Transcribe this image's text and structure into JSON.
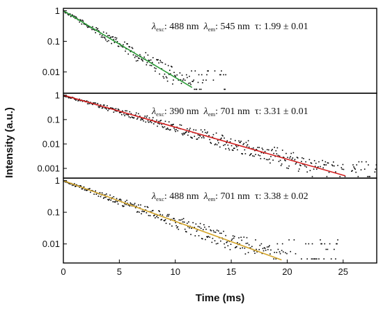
{
  "chart_data": {
    "type": "scatter",
    "x_axis": {
      "label": "Time (ms)",
      "range": [
        0,
        28
      ],
      "ticks": [
        0,
        5,
        10,
        15,
        20,
        25
      ],
      "tick_labels": [
        "0",
        "5",
        "10",
        "15",
        "20",
        "25"
      ]
    },
    "y_axis": {
      "label": "Intensity (a.u.)",
      "scale": "log"
    },
    "panels": [
      {
        "annotation": {
          "exc_symbol": "λ",
          "exc_sub": "exc",
          "exc_value": ": 488 nm",
          "em_symbol": "λ",
          "em_sub": "em",
          "em_value": ": 545 nm",
          "tau_text": "τ: 1.99 ± 0.01"
        },
        "y_range": [
          0.002,
          1.2
        ],
        "y_ticks": [
          1,
          0.1,
          0.01
        ],
        "y_tick_labels": [
          "1",
          "0.1",
          "0.01"
        ],
        "tau": 1.99,
        "fit_color": "#2e9e3a",
        "fit_x_end": 11.5,
        "data_x_end": 14.5,
        "noise_floor": 0.004
      },
      {
        "annotation": {
          "exc_symbol": "λ",
          "exc_sub": "exc",
          "exc_value": ": 390 nm",
          "em_symbol": "λ",
          "em_sub": "em",
          "em_value": ": 701 nm",
          "tau_text": "τ: 3.31 ± 0.01"
        },
        "y_range": [
          0.0004,
          1.2
        ],
        "y_ticks": [
          1,
          0.1,
          0.01,
          0.001
        ],
        "y_tick_labels": [
          "1",
          "0.1",
          "0.01",
          "0.001"
        ],
        "tau": 3.31,
        "fit_color": "#d42020",
        "fit_x_end": 25.2,
        "data_x_end": 28,
        "noise_floor": 0.0007
      },
      {
        "annotation": {
          "exc_symbol": "λ",
          "exc_sub": "exc",
          "exc_value": ": 488 nm",
          "em_symbol": "λ",
          "em_sub": "em",
          "em_value": ": 701 nm",
          "tau_text": "τ: 3.38 ± 0.02"
        },
        "y_range": [
          0.0025,
          1.2
        ],
        "y_ticks": [
          1,
          0.1,
          0.01
        ],
        "y_tick_labels": [
          "1",
          "0.1",
          "0.01"
        ],
        "tau": 3.38,
        "fit_color": "#d4a52a",
        "fit_x_end": 19.5,
        "data_x_end": 24.5,
        "noise_floor": 0.005
      }
    ]
  }
}
